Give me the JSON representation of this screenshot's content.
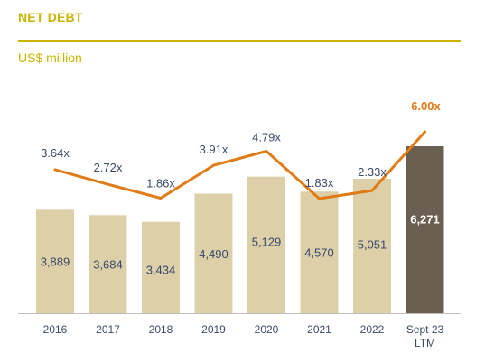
{
  "header": {
    "title": "NET DEBT",
    "subtitle": "US$ million"
  },
  "colors": {
    "accent": "#C8B400",
    "bar": "#DDD0A8",
    "bar_highlight": "#6B5F52",
    "line": "#E07B16",
    "text": "#3A4A6B",
    "axis": "#BFBFBF"
  },
  "chart_data": {
    "type": "bar",
    "categories": [
      "2016",
      "2017",
      "2018",
      "2019",
      "2020",
      "2021",
      "2022",
      "Sept 23 LTM"
    ],
    "category_lines": [
      [
        "2016"
      ],
      [
        "2017"
      ],
      [
        "2018"
      ],
      [
        "2019"
      ],
      [
        "2020"
      ],
      [
        "2021"
      ],
      [
        "2022"
      ],
      [
        "Sept 23",
        "LTM"
      ]
    ],
    "series": [
      {
        "name": "",
        "type": "bar",
        "values": [
          3889,
          3684,
          3434,
          4490,
          5129,
          4570,
          5051,
          6271
        ],
        "labels": [
          "3,889",
          "3,684",
          "3,434",
          "4,490",
          "5,129",
          "4,570",
          "5,051",
          "6,271"
        ]
      },
      {
        "name": "",
        "type": "line",
        "values": [
          3.64,
          2.72,
          1.86,
          3.91,
          4.79,
          1.83,
          2.33,
          6.0
        ],
        "labels": [
          "3.64x",
          "2.72x",
          "1.86x",
          "3.91x",
          "4.79x",
          "1.83x",
          "2.33x",
          "6.00x"
        ]
      }
    ],
    "highlight_index": 7,
    "title": "NET DEBT",
    "ylabel": "US$ million",
    "xlabel": "",
    "grid": false,
    "legend": "none"
  }
}
